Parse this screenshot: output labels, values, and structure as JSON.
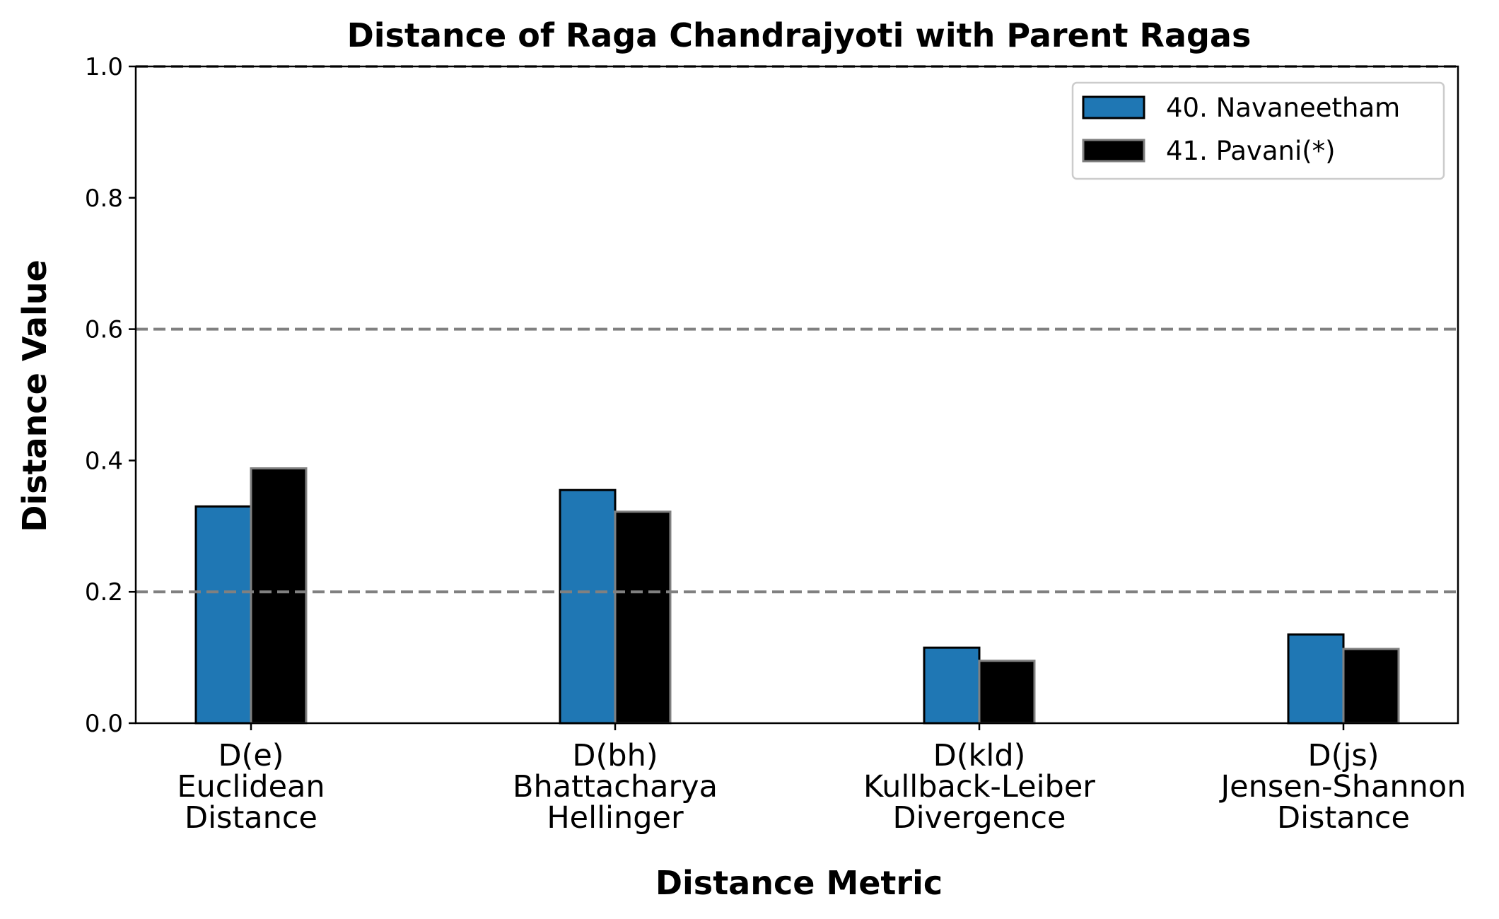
{
  "chart_data": {
    "type": "bar",
    "title": "Distance of Raga Chandrajyoti with Parent Ragas",
    "xlabel": "Distance Metric",
    "ylabel": "Distance Value",
    "ylim": [
      0,
      1.0
    ],
    "yticks": [
      "0.0",
      "0.2",
      "0.4",
      "0.6",
      "0.8",
      "1.0"
    ],
    "categories": [
      [
        "D(e)",
        "Euclidean",
        "Distance"
      ],
      [
        "D(bh)",
        "Bhattacharya",
        "Hellinger"
      ],
      [
        "D(kld)",
        "Kullback-Leiber",
        "Divergence"
      ],
      [
        "D(js)",
        "Jensen-Shannon",
        "Distance"
      ]
    ],
    "series": [
      {
        "name": "40. Navaneetham",
        "values": [
          0.33,
          0.355,
          0.115,
          0.135
        ],
        "color": "#1f77b4",
        "edge": "#000000"
      },
      {
        "name": "41. Pavani(*)",
        "values": [
          0.388,
          0.322,
          0.095,
          0.113
        ],
        "color": "#000000",
        "edge": "#808080"
      }
    ],
    "reference_lines": [
      0.2,
      0.6,
      1.0
    ],
    "reference_line_color": "#808080",
    "grid": false,
    "legend_position": "top-right"
  }
}
